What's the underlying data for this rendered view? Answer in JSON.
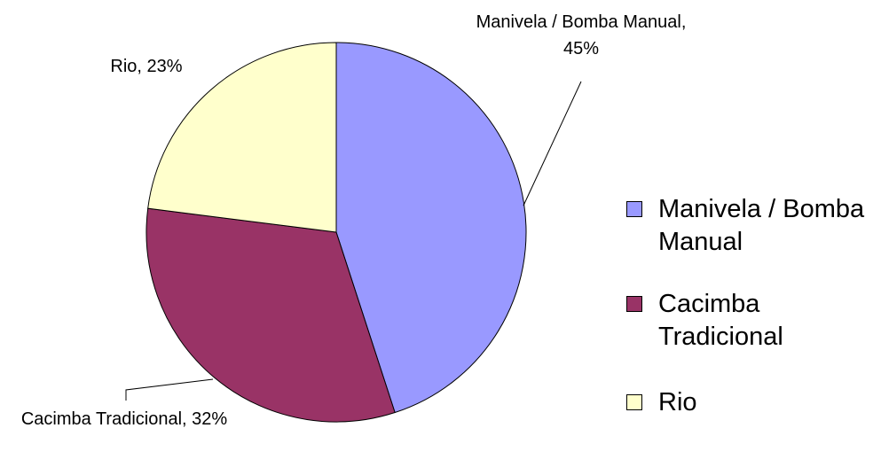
{
  "chart_data": {
    "type": "pie",
    "categories": [
      "Manivela / Bomba Manual",
      "Cacimba Tradicional",
      "Rio"
    ],
    "values": [
      45,
      32,
      23
    ],
    "value_labels": [
      "Manivela / Bomba Manual, 45%",
      "Cacimba Tradicional, 32%",
      "Rio, 23%"
    ],
    "colors": [
      "#9999ff",
      "#993366",
      "#ffffcc"
    ],
    "legend": "right"
  }
}
